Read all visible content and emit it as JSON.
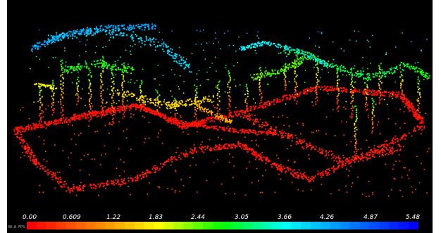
{
  "viewer": {
    "fps_text": "48.8 FPS"
  },
  "colorbar": {
    "ticks": [
      "0.00",
      "0.609",
      "1.22",
      "1.83",
      "2.44",
      "3.05",
      "3.66",
      "4.26",
      "4.87",
      "5.48"
    ],
    "colormap": "jet",
    "gradient_colors": [
      "#ff0000",
      "#ff8000",
      "#ffff00",
      "#00ff00",
      "#00ffff",
      "#0080ff",
      "#0000ff"
    ]
  },
  "scene": {
    "background": "#000000",
    "description_type": "point-cloud-height-colored"
  }
}
